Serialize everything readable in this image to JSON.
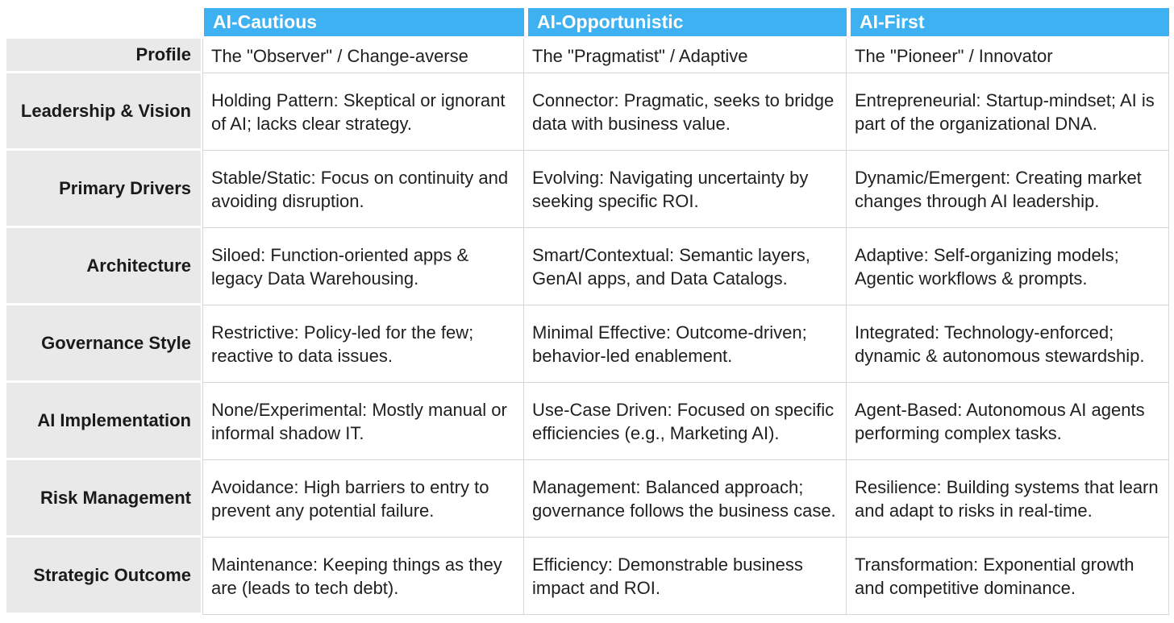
{
  "table": {
    "colors": {
      "header_bg": "#3EB1F2",
      "header_text": "#FFFFFF",
      "label_bg": "#E9E9E9",
      "body_text": "#1F1F1F",
      "border": "#D6D6D6"
    },
    "columns": [
      {
        "label": "AI-Cautious"
      },
      {
        "label": "AI-Opportunistic"
      },
      {
        "label": "AI-First"
      }
    ],
    "rows": [
      {
        "label": "Profile",
        "cells": [
          "The \"Observer\" / Change-averse",
          "The \"Pragmatist\" / Adaptive",
          "The \"Pioneer\" / Innovator"
        ]
      },
      {
        "label": "Leadership & Vision",
        "cells": [
          "Holding Pattern: Skeptical or ignorant of AI; lacks clear strategy.",
          "Connector: Pragmatic, seeks to bridge data with business value.",
          "Entrepreneurial: Startup-mindset; AI is part of the organizational DNA."
        ]
      },
      {
        "label": "Primary Drivers",
        "cells": [
          "Stable/Static: Focus on continuity and avoiding disruption.",
          "Evolving: Navigating uncertainty by seeking specific ROI.",
          "Dynamic/Emergent: Creating market changes through AI leadership."
        ]
      },
      {
        "label": "Architecture",
        "cells": [
          "Siloed: Function-oriented apps & legacy Data Warehousing.",
          "Smart/Contextual: Semantic layers, GenAI apps, and Data Catalogs.",
          "Adaptive: Self-organizing models; Agentic workflows & prompts."
        ]
      },
      {
        "label": "Governance Style",
        "cells": [
          "Restrictive: Policy-led for the few; reactive to data issues.",
          "Minimal Effective: Outcome-driven; behavior-led enablement.",
          "Integrated: Technology-enforced; dynamic & autonomous stewardship."
        ]
      },
      {
        "label": "AI Implementation",
        "cells": [
          "None/Experimental: Mostly manual or informal shadow IT.",
          "Use-Case Driven: Focused on specific efficiencies (e.g., Marketing AI).",
          "Agent-Based: Autonomous AI agents performing complex tasks."
        ]
      },
      {
        "label": "Risk Management",
        "cells": [
          "Avoidance: High barriers to entry to prevent any potential failure.",
          "Management: Balanced approach; governance follows the business case.",
          "Resilience: Building systems that learn and adapt to risks in real-time."
        ]
      },
      {
        "label": "Strategic Outcome",
        "cells": [
          "Maintenance: Keeping things as they are (leads to tech debt).",
          "Efficiency: Demonstrable business impact and ROI.",
          "Transformation: Exponential growth and competitive dominance."
        ]
      }
    ]
  }
}
